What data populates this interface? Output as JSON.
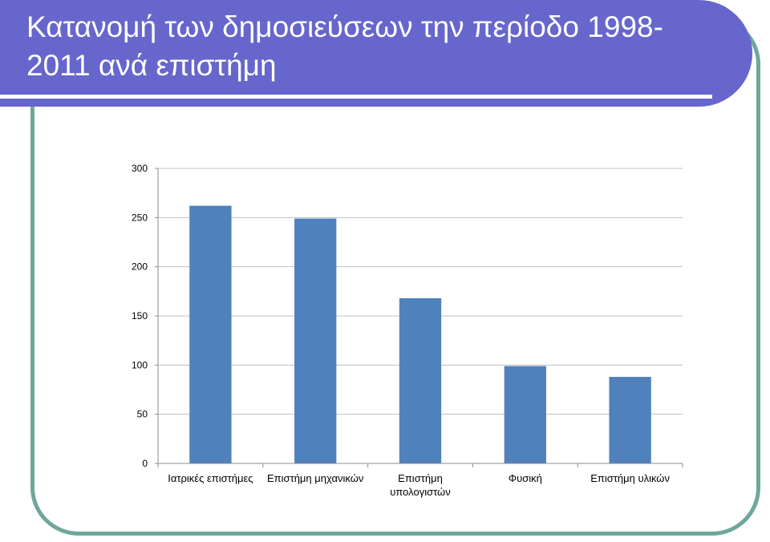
{
  "title": "Κατανομή των δημοσιεύσεων την περίοδο 1998-2011 ανά επιστήμη",
  "title_lines": [
    "Κατανομή των δημοσιεύσεων την περίοδο 1998-",
    "2011 ανά επιστήμη"
  ],
  "colors": {
    "banner": "#6666cc",
    "frame": "#6ea79b",
    "bar": "#4f81bd",
    "grid": "#bfbfbf"
  },
  "chart_data": {
    "type": "bar",
    "categories": [
      [
        "Ιατρικές επιστήμες"
      ],
      [
        "Επιστήμη μηχανικών"
      ],
      [
        "Επιστήμη",
        "υπολογιστών"
      ],
      [
        "Φυσική"
      ],
      [
        "Επιστήμη υλικών"
      ]
    ],
    "values": [
      262,
      249,
      168,
      99,
      88
    ],
    "ylim": [
      0,
      300
    ],
    "yticks": [
      0,
      50,
      100,
      150,
      200,
      250,
      300
    ],
    "grid": true,
    "legend": "none"
  }
}
